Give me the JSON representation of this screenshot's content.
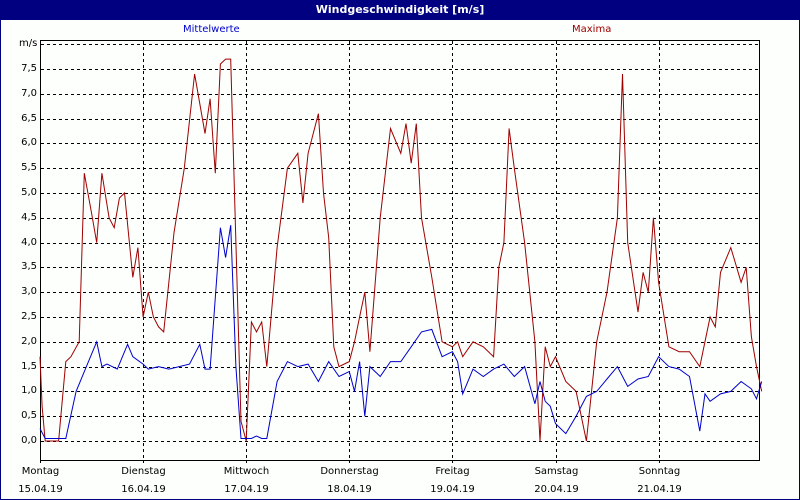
{
  "window": {
    "title": "Windgeschwindigkeit [m/s]"
  },
  "legend": {
    "mean": "Mittelwerte",
    "max": "Maxima"
  },
  "colors": {
    "titlebar": "#000080",
    "mean": "#0000cc",
    "max": "#a00000",
    "grid": "#000000",
    "background": "#fcfffc"
  },
  "axis": {
    "unit": "m/s",
    "y_ticks": [
      "7,5",
      "7,0",
      "6,5",
      "6,0",
      "5,5",
      "5,0",
      "4,5",
      "4,0",
      "3,5",
      "3,0",
      "2,5",
      "2,0",
      "1,5",
      "1,0",
      "0,5",
      "0,0"
    ],
    "x_days": [
      {
        "day": "Montag",
        "date": "15.04.19"
      },
      {
        "day": "Dienstag",
        "date": "16.04.19"
      },
      {
        "day": "Mittwoch",
        "date": "17.04.19"
      },
      {
        "day": "Donnerstag",
        "date": "18.04.19"
      },
      {
        "day": "Freitag",
        "date": "19.04.19"
      },
      {
        "day": "Samstag",
        "date": "20.04.19"
      },
      {
        "day": "Sonntag",
        "date": "21.04.19"
      }
    ]
  },
  "chart_data": {
    "type": "line",
    "title": "Windgeschwindigkeit [m/s]",
    "xlabel": "",
    "ylabel": "m/s",
    "ylim": [
      -0.4,
      8.0
    ],
    "grid": true,
    "legend_position": "top",
    "x_unit": "days since 15.04.19 00:00",
    "series": [
      {
        "name": "Mittelwerte",
        "color": "#0000cc",
        "x": [
          0,
          0.05,
          0.15,
          0.25,
          0.35,
          0.45,
          0.55,
          0.6,
          0.65,
          0.75,
          0.85,
          0.9,
          1.0,
          1.05,
          1.15,
          1.25,
          1.35,
          1.45,
          1.55,
          1.6,
          1.65,
          1.75,
          1.8,
          1.85,
          1.9,
          1.95,
          2.05,
          2.1,
          2.15,
          2.2,
          2.3,
          2.4,
          2.5,
          2.6,
          2.7,
          2.8,
          2.9,
          3.0,
          3.05,
          3.1,
          3.15,
          3.2,
          3.3,
          3.4,
          3.5,
          3.6,
          3.7,
          3.8,
          3.9,
          4.0,
          4.05,
          4.1,
          4.2,
          4.3,
          4.4,
          4.5,
          4.6,
          4.7,
          4.8,
          4.85,
          4.9,
          4.95,
          5.0,
          5.1,
          5.2,
          5.3,
          5.4,
          5.5,
          5.6,
          5.7,
          5.8,
          5.9,
          6.0,
          6.1,
          6.2,
          6.3,
          6.4,
          6.45,
          6.5,
          6.6,
          6.7,
          6.8,
          6.9,
          6.95,
          7.0
        ],
        "values": [
          0.25,
          0.05,
          0.05,
          0.05,
          1.0,
          1.5,
          2.0,
          1.5,
          1.55,
          1.45,
          1.95,
          1.7,
          1.55,
          1.45,
          1.5,
          1.45,
          1.5,
          1.55,
          1.95,
          1.45,
          1.45,
          4.3,
          3.7,
          4.35,
          1.5,
          0.05,
          0.05,
          0.1,
          0.05,
          0.05,
          1.2,
          1.6,
          1.5,
          1.55,
          1.2,
          1.6,
          1.3,
          1.4,
          1.0,
          1.6,
          0.5,
          1.5,
          1.3,
          1.6,
          1.6,
          1.9,
          2.2,
          2.25,
          1.7,
          1.8,
          1.6,
          0.95,
          1.45,
          1.3,
          1.45,
          1.55,
          1.3,
          1.5,
          0.75,
          1.2,
          0.8,
          0.7,
          0.35,
          0.15,
          0.5,
          0.9,
          1.0,
          1.25,
          1.5,
          1.1,
          1.25,
          1.3,
          1.7,
          1.5,
          1.45,
          1.3,
          0.2,
          0.95,
          0.8,
          0.95,
          1.0,
          1.2,
          1.05,
          0.85,
          1.2
        ]
      },
      {
        "name": "Maxima",
        "color": "#a00000",
        "x": [
          0,
          0.02,
          0.05,
          0.1,
          0.18,
          0.25,
          0.3,
          0.38,
          0.43,
          0.5,
          0.55,
          0.6,
          0.67,
          0.72,
          0.77,
          0.82,
          0.9,
          0.95,
          1.0,
          1.05,
          1.1,
          1.15,
          1.2,
          1.3,
          1.4,
          1.5,
          1.6,
          1.65,
          1.7,
          1.75,
          1.8,
          1.85,
          1.9,
          1.95,
          2.0,
          2.05,
          2.1,
          2.15,
          2.2,
          2.3,
          2.4,
          2.5,
          2.55,
          2.6,
          2.7,
          2.75,
          2.8,
          2.85,
          2.9,
          3.0,
          3.05,
          3.1,
          3.15,
          3.2,
          3.3,
          3.4,
          3.5,
          3.55,
          3.6,
          3.65,
          3.7,
          3.8,
          3.9,
          4.0,
          4.05,
          4.1,
          4.2,
          4.3,
          4.4,
          4.45,
          4.5,
          4.55,
          4.6,
          4.7,
          4.8,
          4.85,
          4.9,
          4.95,
          5.0,
          5.1,
          5.2,
          5.3,
          5.4,
          5.5,
          5.6,
          5.65,
          5.7,
          5.8,
          5.85,
          5.9,
          5.95,
          6.0,
          6.1,
          6.2,
          6.3,
          6.4,
          6.5,
          6.55,
          6.6,
          6.7,
          6.8,
          6.85,
          6.9,
          6.95,
          7.0
        ],
        "values": [
          1.7,
          0.7,
          0.0,
          0.0,
          0.0,
          1.6,
          1.7,
          2.0,
          5.4,
          4.6,
          4.0,
          5.4,
          4.5,
          4.3,
          4.9,
          5.0,
          3.3,
          3.9,
          2.5,
          3.0,
          2.5,
          2.3,
          2.2,
          4.2,
          5.5,
          7.4,
          6.2,
          6.9,
          5.4,
          7.6,
          7.7,
          7.7,
          4.0,
          0.4,
          0.0,
          2.4,
          2.2,
          2.4,
          1.5,
          3.9,
          5.5,
          5.8,
          4.8,
          5.8,
          6.6,
          5.0,
          4.1,
          1.9,
          1.5,
          1.6,
          2.0,
          2.5,
          3.0,
          1.8,
          4.5,
          6.3,
          5.8,
          6.4,
          5.6,
          6.4,
          4.5,
          3.3,
          2.0,
          1.9,
          2.0,
          1.7,
          2.0,
          1.9,
          1.7,
          3.5,
          4.0,
          6.3,
          5.5,
          4.0,
          2.0,
          0.0,
          1.9,
          1.5,
          1.7,
          1.2,
          1.0,
          0.0,
          2.0,
          3.0,
          4.5,
          7.4,
          4.0,
          2.6,
          3.4,
          3.0,
          4.5,
          3.2,
          1.9,
          1.8,
          1.8,
          1.5,
          2.5,
          2.3,
          3.4,
          3.9,
          3.2,
          3.5,
          2.1,
          1.5,
          1.0
        ]
      }
    ]
  }
}
